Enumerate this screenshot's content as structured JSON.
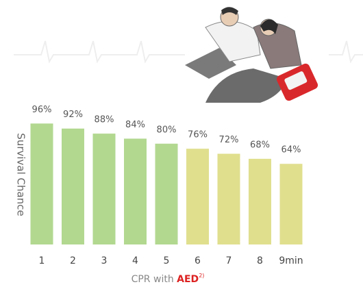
{
  "chart_data": {
    "type": "bar",
    "ylabel": "Survival Chance",
    "xlabel": {
      "text": "CPR with",
      "highlight": "AED",
      "note": "2)"
    },
    "categories": [
      "1",
      "2",
      "3",
      "4",
      "5",
      "6",
      "7",
      "8",
      "9min"
    ],
    "values": [
      96,
      92,
      88,
      84,
      80,
      76,
      72,
      68,
      64
    ],
    "value_labels": [
      "96%",
      "92%",
      "88%",
      "84%",
      "80%",
      "76%",
      "72%",
      "68%",
      "64%"
    ],
    "colors": [
      "#b2d890",
      "#b2d890",
      "#b2d890",
      "#b2d890",
      "#b2d890",
      "#e0df8e",
      "#e0df8e",
      "#e0df8e",
      "#e0df8e"
    ],
    "ylim": [
      0,
      100
    ]
  }
}
